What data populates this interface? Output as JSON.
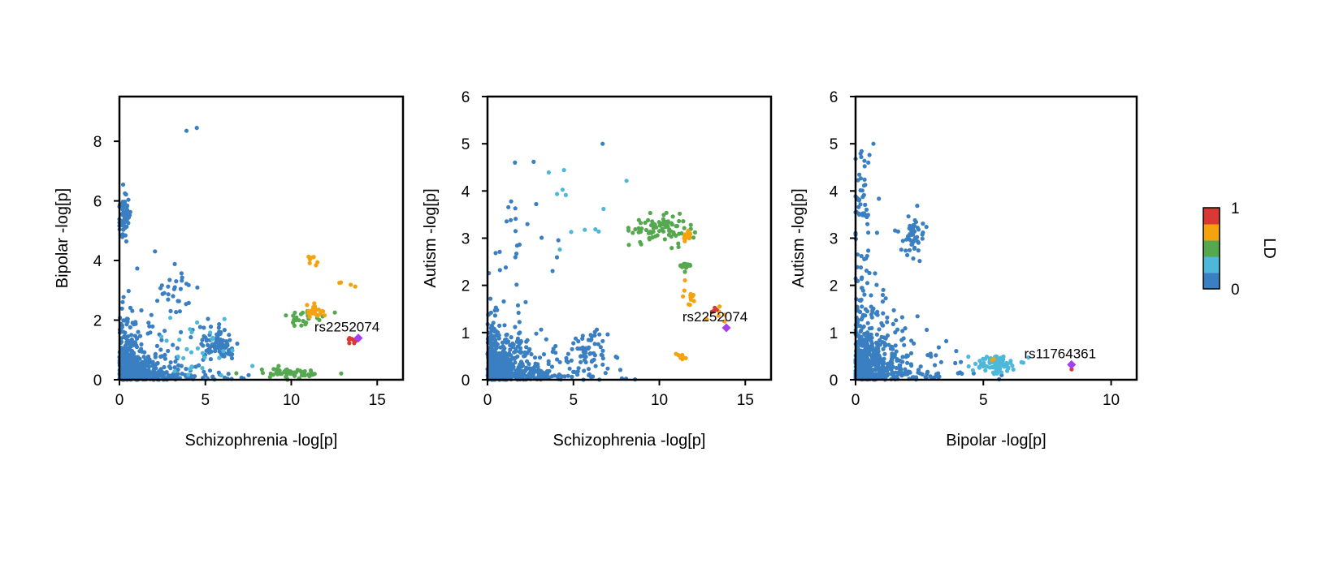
{
  "chart_data": [
    {
      "type": "scatter",
      "id": "p1",
      "xlabel": "Schizophrenia -log[p]",
      "ylabel": "Bipolar -log[p]",
      "xlim": [
        0,
        16.5
      ],
      "ylim": [
        0,
        9.5
      ],
      "xticks": [
        0,
        5,
        10,
        15
      ],
      "yticks": [
        0,
        2,
        4,
        6,
        8
      ],
      "annotation": {
        "text": "rs2252074",
        "x": 13.9,
        "y": 1.4
      },
      "lead_snp": {
        "x": 13.9,
        "y": 1.4
      },
      "clusters": [
        {
          "ld": 0,
          "n": 600,
          "cx": 1.0,
          "cy": 0.4,
          "sx": 1.4,
          "sy": 0.6,
          "dist": "exp"
        },
        {
          "ld": 0,
          "n": 70,
          "cx": 0.3,
          "cy": 5.5,
          "sx": 0.18,
          "sy": 0.4
        },
        {
          "ld": 0,
          "n": 80,
          "cx": 5.8,
          "cy": 1.2,
          "sx": 0.6,
          "sy": 0.3
        },
        {
          "ld": 0,
          "n": 30,
          "cx": 3.2,
          "cy": 3.2,
          "sx": 0.8,
          "sy": 0.5
        },
        {
          "ld": 1,
          "n": 30,
          "cx": 4.8,
          "cy": 1.0,
          "sx": 1.0,
          "sy": 0.6
        },
        {
          "ld": 2,
          "n": 60,
          "cx": 10.0,
          "cy": 0.22,
          "sx": 1.1,
          "sy": 0.08
        },
        {
          "ld": 2,
          "n": 25,
          "cx": 10.8,
          "cy": 2.1,
          "sx": 0.6,
          "sy": 0.15
        },
        {
          "ld": 3,
          "n": 20,
          "cx": 11.3,
          "cy": 2.35,
          "sx": 0.3,
          "sy": 0.12
        },
        {
          "ld": 3,
          "n": 8,
          "cx": 11.2,
          "cy": 4.0,
          "sx": 0.15,
          "sy": 0.08
        },
        {
          "ld": 3,
          "n": 4,
          "cx": 13.2,
          "cy": 3.25,
          "sx": 0.3,
          "sy": 0.08
        },
        {
          "ld": 4,
          "n": 8,
          "cx": 13.5,
          "cy": 1.32,
          "sx": 0.2,
          "sy": 0.05
        }
      ],
      "points": [
        {
          "x": 3.9,
          "y": 8.35,
          "ld": 0
        },
        {
          "x": 4.5,
          "y": 8.45,
          "ld": 0
        }
      ]
    },
    {
      "type": "scatter",
      "id": "p2",
      "xlabel": "Schizophrenia -log[p]",
      "ylabel": "Autism -log[p]",
      "xlim": [
        0,
        16.5
      ],
      "ylim": [
        0,
        6
      ],
      "xticks": [
        0,
        5,
        10,
        15
      ],
      "yticks": [
        0,
        1,
        2,
        3,
        4,
        5,
        6
      ],
      "annotation": {
        "text": "rs2252074",
        "x": 13.9,
        "y": 1.1
      },
      "lead_snp": {
        "x": 13.9,
        "y": 1.1
      },
      "clusters": [
        {
          "ld": 0,
          "n": 600,
          "cx": 1.2,
          "cy": 0.35,
          "sx": 1.5,
          "sy": 0.45,
          "dist": "exp"
        },
        {
          "ld": 0,
          "n": 60,
          "cx": 5.8,
          "cy": 0.6,
          "sx": 0.6,
          "sy": 0.2
        },
        {
          "ld": 0,
          "n": 20,
          "cx": 2.0,
          "cy": 3.2,
          "sx": 1.0,
          "sy": 0.6
        },
        {
          "ld": 1,
          "n": 12,
          "cx": 5.0,
          "cy": 3.5,
          "sx": 1.2,
          "sy": 0.8
        },
        {
          "ld": 2,
          "n": 80,
          "cx": 10.2,
          "cy": 3.2,
          "sx": 0.9,
          "sy": 0.15
        },
        {
          "ld": 2,
          "n": 20,
          "cx": 11.5,
          "cy": 2.4,
          "sx": 0.15,
          "sy": 0.05
        },
        {
          "ld": 3,
          "n": 15,
          "cx": 11.6,
          "cy": 3.05,
          "sx": 0.15,
          "sy": 0.08
        },
        {
          "ld": 3,
          "n": 12,
          "cx": 11.7,
          "cy": 1.8,
          "sx": 0.15,
          "sy": 0.15
        },
        {
          "ld": 3,
          "n": 8,
          "cx": 11.3,
          "cy": 0.48,
          "sx": 0.15,
          "sy": 0.04
        },
        {
          "ld": 3,
          "n": 6,
          "cx": 13.5,
          "cy": 1.45,
          "sx": 0.3,
          "sy": 0.1
        },
        {
          "ld": 4,
          "n": 5,
          "cx": 13.3,
          "cy": 1.45,
          "sx": 0.2,
          "sy": 0.05
        }
      ],
      "points": [
        {
          "x": 6.7,
          "y": 5.0,
          "ld": 0
        },
        {
          "x": 1.6,
          "y": 4.6,
          "ld": 0
        }
      ]
    },
    {
      "type": "scatter",
      "id": "p3",
      "xlabel": "Bipolar -log[p]",
      "ylabel": "Autism -log[p]",
      "xlim": [
        0,
        11
      ],
      "ylim": [
        0,
        6
      ],
      "xticks": [
        0,
        5,
        10
      ],
      "yticks": [
        0,
        1,
        2,
        3,
        4,
        5,
        6
      ],
      "annotation": {
        "text": "rs11764361",
        "x": 8.45,
        "y": 0.32
      },
      "lead_snp": {
        "x": 8.45,
        "y": 0.32
      },
      "clusters": [
        {
          "ld": 0,
          "n": 600,
          "cx": 1.2,
          "cy": 0.4,
          "sx": 1.0,
          "sy": 0.6,
          "dist": "exp"
        },
        {
          "ld": 0,
          "n": 50,
          "cx": 0.3,
          "cy": 3.6,
          "sx": 0.2,
          "sy": 0.6
        },
        {
          "ld": 0,
          "n": 50,
          "cx": 2.2,
          "cy": 3.0,
          "sx": 0.25,
          "sy": 0.25
        },
        {
          "ld": 1,
          "n": 90,
          "cx": 5.5,
          "cy": 0.33,
          "sx": 0.4,
          "sy": 0.1
        },
        {
          "ld": 3,
          "n": 2,
          "cx": 5.4,
          "cy": 0.42,
          "sx": 0.05,
          "sy": 0.03
        },
        {
          "ld": 4,
          "n": 1,
          "cx": 8.45,
          "cy": 0.22,
          "sx": 0.02,
          "sy": 0.02
        }
      ],
      "points": [
        {
          "x": 0.7,
          "y": 5.0,
          "ld": 0
        },
        {
          "x": 0.5,
          "y": 4.6,
          "ld": 0
        }
      ]
    }
  ],
  "colorbar": {
    "label": "LD",
    "min_label": "0",
    "max_label": "1",
    "colors": [
      "#3a7fc1",
      "#4db8da",
      "#55a84f",
      "#f4a20e",
      "#d83a33"
    ]
  },
  "lead_color": "#a33ff0"
}
